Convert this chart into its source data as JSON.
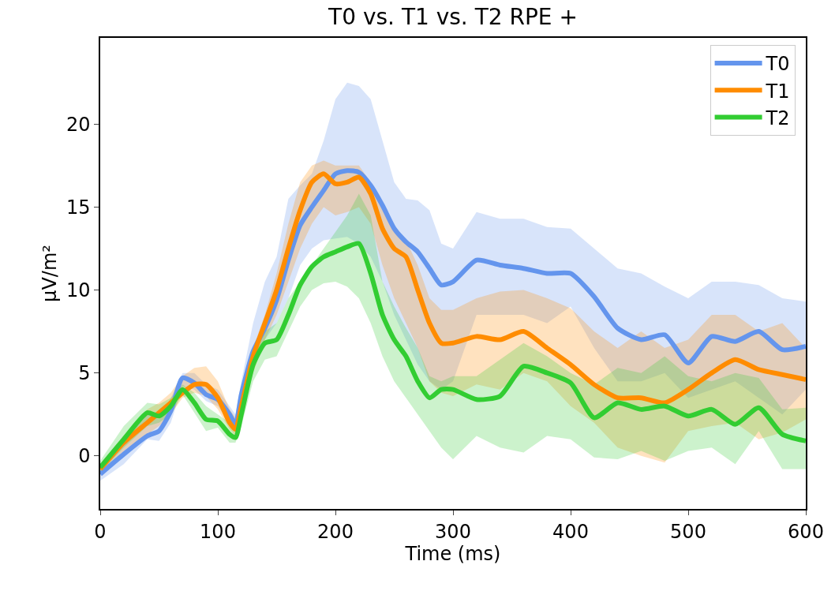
{
  "chart_data": {
    "type": "line",
    "title": "T0 vs. T1 vs. T2 RPE +",
    "xlabel": "Time (ms)",
    "ylabel": "μV/m²",
    "x": [
      0,
      20,
      40,
      50,
      60,
      70,
      80,
      90,
      100,
      110,
      115,
      120,
      130,
      140,
      150,
      160,
      170,
      180,
      190,
      200,
      210,
      220,
      230,
      240,
      250,
      260,
      270,
      280,
      290,
      300,
      320,
      340,
      360,
      380,
      400,
      420,
      440,
      460,
      480,
      500,
      520,
      540,
      560,
      580,
      600
    ],
    "series": [
      {
        "name": "T0",
        "color": "#6495ed",
        "values": [
          -1.1,
          0.1,
          1.2,
          1.5,
          2.7,
          4.7,
          4.4,
          3.7,
          3.4,
          2.5,
          1.9,
          3.7,
          6.3,
          7.7,
          9.4,
          11.8,
          13.9,
          15,
          16,
          17,
          17.2,
          17.1,
          16.3,
          15.1,
          13.7,
          12.9,
          12.3,
          11.3,
          10.3,
          10.5,
          11.8,
          11.5,
          11.3,
          11.0,
          11.0,
          9.6,
          7.7,
          7.0,
          7.3,
          5.6,
          7.2,
          6.9,
          7.5,
          6.4,
          6.6
        ],
        "upper": [
          -0.5,
          0.8,
          2.5,
          2.2,
          3.5,
          5.0,
          5.0,
          4.3,
          4.0,
          3.0,
          2.5,
          4.5,
          8.0,
          10.5,
          12.0,
          15.5,
          16.3,
          17.0,
          19,
          21.5,
          22.5,
          22.3,
          21.5,
          19,
          16.5,
          15.5,
          15.4,
          14.8,
          12.8,
          12.5,
          14.7,
          14.3,
          14.3,
          13.8,
          13.7,
          12.5,
          11.3,
          11.0,
          10.2,
          9.5,
          10.5,
          10.5,
          10.3,
          9.5,
          9.3
        ],
        "lower": [
          -1.5,
          -0.5,
          1.0,
          0.9,
          2.0,
          4.2,
          4.0,
          3.3,
          3.0,
          2.0,
          1.5,
          3.0,
          5.5,
          7.0,
          8.0,
          9.5,
          11.5,
          12.5,
          13,
          13.1,
          13.2,
          12.8,
          12.0,
          10.5,
          8.5,
          7.0,
          5.5,
          4.5,
          4.0,
          4.5,
          8.5,
          8.5,
          8.5,
          8.0,
          9.0,
          6.5,
          4.5,
          4.5,
          5.0,
          3.5,
          4.0,
          4.5,
          3.5,
          2.5,
          4.0
        ]
      },
      {
        "name": "T1",
        "color": "#ff8c00",
        "values": [
          -0.8,
          0.8,
          2.0,
          2.6,
          3.2,
          3.8,
          4.3,
          4.3,
          3.5,
          2.0,
          1.6,
          3.0,
          6.0,
          8.0,
          10,
          12.5,
          14.8,
          16.5,
          17.0,
          16.4,
          16.5,
          16.8,
          15.8,
          13.7,
          12.5,
          12.0,
          10,
          8.0,
          6.8,
          6.8,
          7.2,
          7.0,
          7.5,
          6.5,
          5.5,
          4.3,
          3.5,
          3.5,
          3.2,
          4.0,
          5.0,
          5.8,
          5.2,
          4.9,
          4.6
        ],
        "upper": [
          -0.5,
          1.2,
          2.8,
          3.2,
          3.8,
          4.8,
          5.3,
          5.4,
          4.5,
          2.8,
          2.3,
          3.5,
          6.5,
          8.5,
          11,
          14,
          16.5,
          17.5,
          17.8,
          17.5,
          17.5,
          17.5,
          16.5,
          14.8,
          13.5,
          13.0,
          11.5,
          9.5,
          8.8,
          8.8,
          9.5,
          9.9,
          10.0,
          9.5,
          8.9,
          7.5,
          6.5,
          7.5,
          6.5,
          7.0,
          8.5,
          8.5,
          7.5,
          8.0,
          6.5
        ],
        "lower": [
          -1.0,
          0.3,
          1.3,
          1.8,
          2.5,
          3.5,
          3.8,
          3.6,
          2.8,
          1.6,
          1.2,
          2.3,
          5.0,
          7.0,
          8.5,
          10.5,
          12.5,
          14,
          15,
          14.5,
          14.7,
          15.0,
          14.0,
          11.5,
          9.5,
          8.0,
          6.5,
          4.5,
          3.8,
          3.6,
          4.3,
          4.0,
          5.0,
          4.5,
          3.0,
          2.0,
          0.5,
          0.0,
          -0.4,
          1.5,
          1.8,
          2.0,
          1.0,
          1.4,
          2.2
        ]
      },
      {
        "name": "T2",
        "color": "#32cd32",
        "values": [
          -0.7,
          1.0,
          2.6,
          2.4,
          3.0,
          4.0,
          3.2,
          2.2,
          2.1,
          1.3,
          1.1,
          2.5,
          5.5,
          6.8,
          7.0,
          8.5,
          10.3,
          11.4,
          12.0,
          12.3,
          12.6,
          12.8,
          11.0,
          8.5,
          7.0,
          6.0,
          4.5,
          3.5,
          4.0,
          4.0,
          3.4,
          3.6,
          5.4,
          5.0,
          4.4,
          2.3,
          3.2,
          2.8,
          3.0,
          2.4,
          2.8,
          1.9,
          2.9,
          1.3,
          0.9
        ],
        "upper": [
          -0.3,
          1.8,
          3.2,
          3.1,
          3.5,
          4.3,
          3.8,
          3.0,
          2.5,
          2.0,
          1.7,
          3.2,
          6.5,
          7.5,
          8.0,
          9.5,
          10.5,
          11.5,
          12.5,
          13.5,
          14.5,
          15.8,
          14.5,
          10.5,
          9.0,
          7.7,
          6.5,
          4.8,
          4.5,
          4.8,
          4.8,
          5.8,
          6.8,
          6.0,
          5.0,
          4.3,
          5.3,
          5.0,
          6.0,
          4.8,
          4.5,
          5.0,
          4.7,
          2.8,
          2.9
        ],
        "lower": [
          -1.0,
          0.5,
          1.8,
          2.0,
          2.5,
          3.7,
          2.6,
          1.5,
          1.7,
          0.8,
          0.8,
          1.8,
          4.5,
          5.8,
          6.0,
          7.5,
          9.0,
          10.0,
          10.4,
          10.5,
          10.2,
          9.5,
          8.0,
          6.0,
          4.5,
          3.5,
          2.5,
          1.5,
          0.5,
          -0.2,
          1.2,
          0.5,
          0.2,
          1.2,
          1.0,
          -0.1,
          -0.2,
          0.3,
          -0.3,
          0.3,
          0.5,
          -0.5,
          1.5,
          -0.8,
          -0.8
        ]
      }
    ],
    "xlim": [
      0,
      600
    ],
    "xticks": [
      0,
      100,
      200,
      300,
      400,
      500,
      600
    ],
    "ylim": [
      -3.2,
      25.2
    ],
    "yticks": [
      0,
      5,
      10,
      15,
      20
    ],
    "legend": "top right",
    "marker": "none",
    "line_style": "solid"
  }
}
